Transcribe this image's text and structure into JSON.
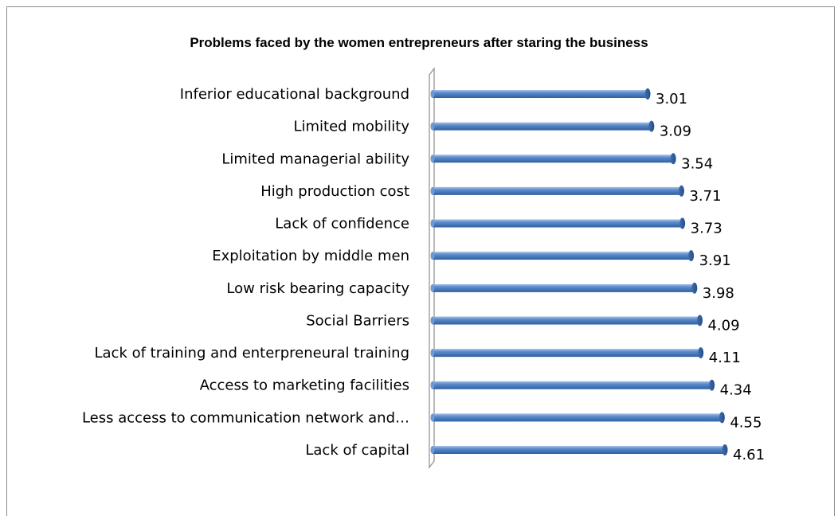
{
  "chart_data": {
    "type": "bar",
    "orientation": "horizontal",
    "title": "Problems faced by the women entrepreneurs after staring the business",
    "categories": [
      "Inferior educational background",
      "Limited mobility",
      "Limited managerial ability",
      "High production cost",
      "Lack of confidence",
      "Exploitation by middle men",
      "Low risk bearing capacity",
      "Social Barriers",
      "Lack of training and enterpreneural training",
      "Access to marketing facilities",
      "Less access to communication network and…",
      "Lack of capital"
    ],
    "values": [
      3.01,
      3.09,
      3.54,
      3.71,
      3.73,
      3.91,
      3.98,
      4.09,
      4.11,
      4.34,
      4.55,
      4.61
    ],
    "value_labels": [
      "3.01",
      "3.09",
      "3.54",
      "3.71",
      "3.73",
      "3.91",
      "3.98",
      "4.09",
      "4.11",
      "4.34",
      "4.55",
      "4.61"
    ],
    "xlim": [
      0,
      5
    ],
    "grid": false,
    "legend": "none",
    "bar_color": "#4f81bd"
  }
}
